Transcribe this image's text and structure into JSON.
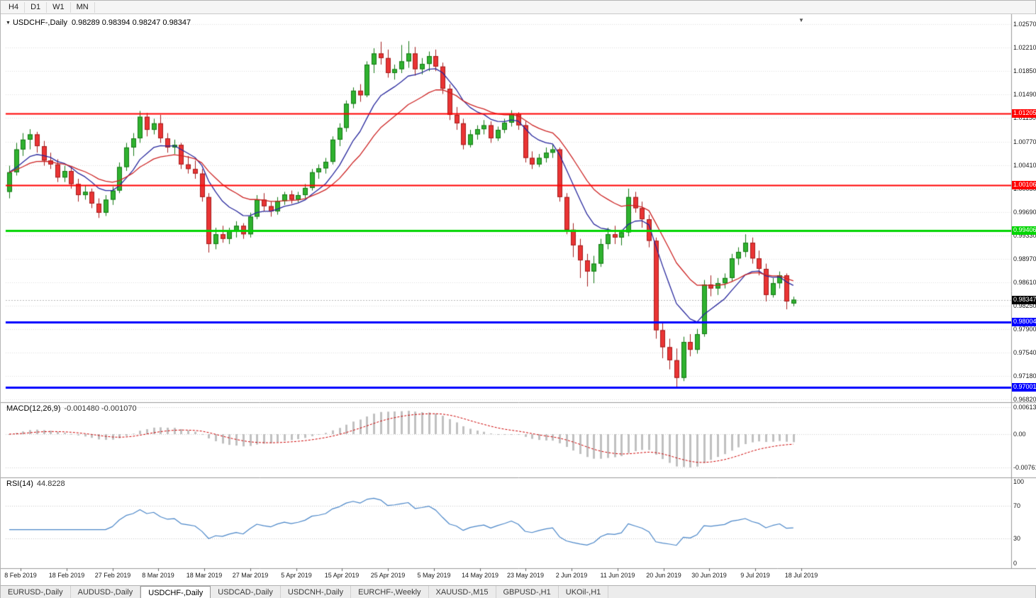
{
  "toolbar": {
    "timeframes": [
      "H4",
      "D1",
      "W1",
      "MN"
    ]
  },
  "chart": {
    "title": "USDCHF-,Daily",
    "ohlc_text": "0.98289 0.98394 0.98247 0.98347"
  },
  "indicators": {
    "macd": {
      "name": "MACD(12,26,9)",
      "values_text": "-0.001480 -0.001070",
      "scale": [
        {
          "label": "0.00613",
          "value": 0.00613
        },
        {
          "label": "0.00",
          "value": 0
        },
        {
          "label": "-0.00761",
          "value": -0.00761
        }
      ]
    },
    "rsi": {
      "name": "RSI(14)",
      "value_text": "44.8228",
      "scale": [
        {
          "label": "100",
          "value": 100
        },
        {
          "label": "70",
          "value": 70
        },
        {
          "label": "30",
          "value": 30
        },
        {
          "label": "0",
          "value": 0
        }
      ],
      "levels": [
        70,
        30
      ]
    }
  },
  "levels": [
    {
      "label": "1.01205",
      "price": 1.01205,
      "color": "#ff0000",
      "width": 2
    },
    {
      "label": "1.00106",
      "price": 1.00106,
      "color": "#ff0000",
      "width": 2
    },
    {
      "label": "0.99406",
      "price": 0.99406,
      "color": "#00d500",
      "width": 3
    },
    {
      "label": "0.98004",
      "price": 0.98004,
      "color": "#0000ff",
      "width": 3
    },
    {
      "label": "0.97001",
      "price": 0.97001,
      "color": "#0000ff",
      "width": 3
    }
  ],
  "current_price": {
    "label": "0.98347",
    "value": 0.98347,
    "color": "#000000"
  },
  "colors": {
    "candle_up": "#2fb22f",
    "candle_up_edge": "#157815",
    "candle_down": "#ea3434",
    "candle_down_edge": "#a31d1d",
    "ma_fast": "#26269c",
    "ma_slow": "#cc2222",
    "macd_hist": "#c0c0c0",
    "macd_signal": "#cc0000",
    "rsi_line": "#4a86c8",
    "grid": "#dcdcdc"
  },
  "chart_data": {
    "type": "candlestick",
    "symbol": "USDCHF",
    "timeframe": "Daily",
    "y_axis": {
      "max": 1.0257,
      "min": 0.9682,
      "ticks": [
        "1.02570",
        "1.02210",
        "1.01850",
        "1.01490",
        "1.01130",
        "1.00770",
        "1.00410",
        "1.00050",
        "0.99690",
        "0.99330",
        "0.98970",
        "0.98610",
        "0.98250",
        "0.97900",
        "0.97540",
        "0.97180",
        "0.96820"
      ]
    },
    "x_labels": [
      "8 Feb 2019",
      "18 Feb 2019",
      "27 Feb 2019",
      "8 Mar 2019",
      "18 Mar 2019",
      "27 Mar 2019",
      "5 Apr 2019",
      "15 Apr 2019",
      "25 Apr 2019",
      "5 May 2019",
      "14 May 2019",
      "23 May 2019",
      "2 Jun 2019",
      "11 Jun 2019",
      "20 Jun 2019",
      "30 Jun 2019",
      "9 Jul 2019",
      "18 Jul 2019"
    ],
    "overlays": [
      {
        "name": "fast-ma",
        "type": "ema",
        "period": 9,
        "color": "#26269c"
      },
      {
        "name": "slow-ma",
        "type": "ema",
        "period": 18,
        "color": "#cc2222"
      }
    ],
    "candles": [
      [
        "2019-02-08",
        1.0,
        1.004,
        0.999,
        1.003
      ],
      [
        "2019-02-11",
        1.003,
        1.0075,
        1.0025,
        1.0065
      ],
      [
        "2019-02-12",
        1.0065,
        1.009,
        1.0055,
        1.008
      ],
      [
        "2019-02-13",
        1.008,
        1.0096,
        1.0065,
        1.0088
      ],
      [
        "2019-02-14",
        1.0088,
        1.0092,
        1.006,
        1.007
      ],
      [
        "2019-02-15",
        1.007,
        1.0078,
        1.004,
        1.0048
      ],
      [
        "2019-02-18",
        1.0048,
        1.006,
        1.0035,
        1.0042
      ],
      [
        "2019-02-19",
        1.0042,
        1.005,
        1.0015,
        1.0022
      ],
      [
        "2019-02-20",
        1.0022,
        1.004,
        1.0015,
        1.0032
      ],
      [
        "2019-02-21",
        1.0032,
        1.0038,
        1.0005,
        1.0012
      ],
      [
        "2019-02-22",
        1.0012,
        1.002,
        0.9985,
        0.9995
      ],
      [
        "2019-02-25",
        0.9995,
        1.001,
        0.9988,
        1.0
      ],
      [
        "2019-02-26",
        1.0,
        1.0005,
        0.9975,
        0.9982
      ],
      [
        "2019-02-27",
        0.9982,
        0.999,
        0.996,
        0.9968
      ],
      [
        "2019-02-28",
        0.9968,
        0.9995,
        0.9963,
        0.9988
      ],
      [
        "2019-03-01",
        0.9988,
        1.0008,
        0.998,
        1.0002
      ],
      [
        "2019-03-04",
        1.0002,
        1.0045,
        0.9998,
        1.0038
      ],
      [
        "2019-03-05",
        1.0038,
        1.0075,
        1.0032,
        1.0068
      ],
      [
        "2019-03-06",
        1.0068,
        1.009,
        1.0055,
        1.0082
      ],
      [
        "2019-03-07",
        1.0082,
        1.0124,
        1.0075,
        1.0115
      ],
      [
        "2019-03-08",
        1.0115,
        1.0121,
        1.0085,
        1.0095
      ],
      [
        "2019-03-11",
        1.0095,
        1.0112,
        1.0088,
        1.0105
      ],
      [
        "2019-03-12",
        1.0105,
        1.0118,
        1.0075,
        1.0082
      ],
      [
        "2019-03-13",
        1.0082,
        1.009,
        1.006,
        1.0068
      ],
      [
        "2019-03-14",
        1.0068,
        1.008,
        1.0058,
        1.0072
      ],
      [
        "2019-03-15",
        1.0072,
        1.0075,
        1.0035,
        1.0042
      ],
      [
        "2019-03-18",
        1.0042,
        1.0055,
        1.0028,
        1.0035
      ],
      [
        "2019-03-19",
        1.0035,
        1.0048,
        1.002,
        1.0028
      ],
      [
        "2019-03-20",
        1.0028,
        1.0035,
        0.9985,
        0.9992
      ],
      [
        "2019-03-21",
        0.9992,
        0.9998,
        0.9907,
        0.992
      ],
      [
        "2019-03-22",
        0.992,
        0.9945,
        0.9912,
        0.9935
      ],
      [
        "2019-03-25",
        0.9935,
        0.9948,
        0.9922,
        0.9928
      ],
      [
        "2019-03-26",
        0.9928,
        0.9945,
        0.992,
        0.994
      ],
      [
        "2019-03-27",
        0.994,
        0.9955,
        0.993,
        0.9948
      ],
      [
        "2019-03-28",
        0.9948,
        0.9952,
        0.9928,
        0.9935
      ],
      [
        "2019-03-29",
        0.9935,
        0.9968,
        0.993,
        0.9962
      ],
      [
        "2019-04-01",
        0.9962,
        0.9995,
        0.9958,
        0.9988
      ],
      [
        "2019-04-02",
        0.9988,
        0.9998,
        0.997,
        0.9978
      ],
      [
        "2019-04-03",
        0.9978,
        0.9985,
        0.9962,
        0.997
      ],
      [
        "2019-04-04",
        0.997,
        0.9992,
        0.9965,
        0.9986
      ],
      [
        "2019-04-05",
        0.9986,
        1.0,
        0.998,
        0.9996
      ],
      [
        "2019-04-08",
        0.9996,
        1.0002,
        0.9982,
        0.9988
      ],
      [
        "2019-04-09",
        0.9988,
        1.0,
        0.9984,
        0.9995
      ],
      [
        "2019-04-10",
        0.9995,
        1.0012,
        0.999,
        1.0006
      ],
      [
        "2019-04-11",
        1.0006,
        1.0035,
        1.0002,
        1.003
      ],
      [
        "2019-04-12",
        1.003,
        1.0042,
        1.002,
        1.0036
      ],
      [
        "2019-04-15",
        1.0036,
        1.0052,
        1.0028,
        1.0046
      ],
      [
        "2019-04-16",
        1.0046,
        1.0085,
        1.0042,
        1.008
      ],
      [
        "2019-04-17",
        1.008,
        1.0105,
        1.007,
        1.0098
      ],
      [
        "2019-04-18",
        1.0098,
        1.014,
        1.0092,
        1.0135
      ],
      [
        "2019-04-19",
        1.0135,
        1.016,
        1.0128,
        1.0155
      ],
      [
        "2019-04-22",
        1.0155,
        1.0165,
        1.0138,
        1.0148
      ],
      [
        "2019-04-23",
        1.0148,
        1.02,
        1.0145,
        1.0195
      ],
      [
        "2019-04-24",
        1.0195,
        1.022,
        1.0182,
        1.0212
      ],
      [
        "2019-04-25",
        1.0212,
        1.023,
        1.0195,
        1.0205
      ],
      [
        "2019-04-26",
        1.0205,
        1.0218,
        1.0175,
        1.0182
      ],
      [
        "2019-04-29",
        1.0182,
        1.0195,
        1.0172,
        1.0188
      ],
      [
        "2019-04-30",
        1.0188,
        1.0225,
        1.0182,
        1.02
      ],
      [
        "2019-05-01",
        1.02,
        1.0231,
        1.019,
        1.0212
      ],
      [
        "2019-05-02",
        1.0212,
        1.0222,
        1.0178,
        1.0188
      ],
      [
        "2019-05-03",
        1.0188,
        1.0205,
        1.018,
        1.0196
      ],
      [
        "2019-05-06",
        1.0196,
        1.0215,
        1.0185,
        1.0208
      ],
      [
        "2019-05-07",
        1.0208,
        1.0218,
        1.0185,
        1.0192
      ],
      [
        "2019-05-08",
        1.0192,
        1.0198,
        1.015,
        1.0158
      ],
      [
        "2019-05-09",
        1.0158,
        1.0165,
        1.011,
        1.0118
      ],
      [
        "2019-05-10",
        1.0118,
        1.013,
        1.0095,
        1.0105
      ],
      [
        "2019-05-13",
        1.0105,
        1.0112,
        1.0065,
        1.0072
      ],
      [
        "2019-05-14",
        1.0072,
        1.0095,
        1.0068,
        1.0088
      ],
      [
        "2019-05-15",
        1.0088,
        1.0102,
        1.008,
        1.0096
      ],
      [
        "2019-05-16",
        1.0096,
        1.011,
        1.0088,
        1.0102
      ],
      [
        "2019-05-17",
        1.0102,
        1.0108,
        1.0075,
        1.0082
      ],
      [
        "2019-05-20",
        1.0082,
        1.01,
        1.0078,
        1.0095
      ],
      [
        "2019-05-21",
        1.0095,
        1.0112,
        1.009,
        1.0106
      ],
      [
        "2019-05-22",
        1.0106,
        1.0125,
        1.01,
        1.012
      ],
      [
        "2019-05-23",
        1.012,
        1.0122,
        1.0095,
        1.0102
      ],
      [
        "2019-05-24",
        1.0102,
        1.0108,
        1.0045,
        1.0052
      ],
      [
        "2019-05-27",
        1.0052,
        1.0062,
        1.0035,
        1.0042
      ],
      [
        "2019-05-28",
        1.0042,
        1.0058,
        1.0038,
        1.0052
      ],
      [
        "2019-05-29",
        1.0052,
        1.0068,
        1.0045,
        1.006
      ],
      [
        "2019-05-30",
        1.006,
        1.0072,
        1.0052,
        1.0065
      ],
      [
        "2019-05-31",
        1.0065,
        1.0068,
        0.9985,
        0.9992
      ],
      [
        "2019-06-03",
        0.9992,
        0.9998,
        0.9935,
        0.9942
      ],
      [
        "2019-06-04",
        0.9942,
        0.9952,
        0.99,
        0.9918
      ],
      [
        "2019-06-05",
        0.9918,
        0.9928,
        0.9868,
        0.9895
      ],
      [
        "2019-06-06",
        0.9895,
        0.9905,
        0.9855,
        0.9878
      ],
      [
        "2019-06-07",
        0.9878,
        0.9902,
        0.986,
        0.989
      ],
      [
        "2019-06-10",
        0.989,
        0.9928,
        0.9885,
        0.992
      ],
      [
        "2019-06-11",
        0.992,
        0.9945,
        0.9912,
        0.9935
      ],
      [
        "2019-06-12",
        0.9935,
        0.9948,
        0.992,
        0.993
      ],
      [
        "2019-06-13",
        0.993,
        0.9942,
        0.9918,
        0.9938
      ],
      [
        "2019-06-14",
        0.9938,
        1.0005,
        0.9932,
        0.9992
      ],
      [
        "2019-06-17",
        0.9992,
        1.0,
        0.9968,
        0.9975
      ],
      [
        "2019-06-18",
        0.9975,
        0.9985,
        0.9945,
        0.9958
      ],
      [
        "2019-06-19",
        0.9958,
        0.9965,
        0.9915,
        0.9925
      ],
      [
        "2019-06-20",
        0.9925,
        0.993,
        0.9775,
        0.9788
      ],
      [
        "2019-06-21",
        0.9788,
        0.98,
        0.9745,
        0.9762
      ],
      [
        "2019-06-24",
        0.9762,
        0.9775,
        0.9728,
        0.9742
      ],
      [
        "2019-06-25",
        0.9742,
        0.976,
        0.97,
        0.9715
      ],
      [
        "2019-06-26",
        0.9715,
        0.9778,
        0.971,
        0.977
      ],
      [
        "2019-06-27",
        0.977,
        0.9782,
        0.9748,
        0.9758
      ],
      [
        "2019-06-28",
        0.9758,
        0.979,
        0.9752,
        0.9782
      ],
      [
        "2019-07-01",
        0.9782,
        0.9865,
        0.9778,
        0.9858
      ],
      [
        "2019-07-02",
        0.9858,
        0.9872,
        0.984,
        0.9852
      ],
      [
        "2019-07-03",
        0.9852,
        0.9868,
        0.9842,
        0.986
      ],
      [
        "2019-07-04",
        0.986,
        0.9875,
        0.9852,
        0.9868
      ],
      [
        "2019-07-05",
        0.9868,
        0.9905,
        0.9862,
        0.9898
      ],
      [
        "2019-07-08",
        0.9898,
        0.9915,
        0.9888,
        0.9908
      ],
      [
        "2019-07-09",
        0.9908,
        0.9935,
        0.99,
        0.9922
      ],
      [
        "2019-07-10",
        0.9922,
        0.993,
        0.989,
        0.9898
      ],
      [
        "2019-07-11",
        0.9898,
        0.991,
        0.9872,
        0.9882
      ],
      [
        "2019-07-12",
        0.9882,
        0.989,
        0.9832,
        0.9842
      ],
      [
        "2019-07-15",
        0.9842,
        0.9868,
        0.9838,
        0.986
      ],
      [
        "2019-07-16",
        0.986,
        0.9878,
        0.9852,
        0.9872
      ],
      [
        "2019-07-17",
        0.9872,
        0.9875,
        0.982,
        0.9832
      ],
      [
        "2019-07-18",
        0.98289,
        0.98394,
        0.98247,
        0.98347
      ]
    ]
  },
  "tabs": [
    {
      "label": "EURUSD-,Daily",
      "active": false
    },
    {
      "label": "AUDUSD-,Daily",
      "active": false
    },
    {
      "label": "USDCHF-,Daily",
      "active": true
    },
    {
      "label": "USDCAD-,Daily",
      "active": false
    },
    {
      "label": "USDCNH-,Daily",
      "active": false
    },
    {
      "label": "EURCHF-,Weekly",
      "active": false
    },
    {
      "label": "XAUUSD-,M15",
      "active": false
    },
    {
      "label": "GBPUSD-,H1",
      "active": false
    },
    {
      "label": "UKOil-,H1",
      "active": false
    }
  ]
}
